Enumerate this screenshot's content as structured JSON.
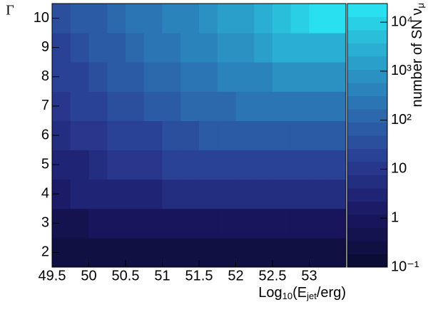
{
  "chart_data": {
    "type": "heatmap",
    "ylabel": "Γ",
    "xlabel": [
      "Log",
      "10",
      "(E",
      "jet",
      "/erg)"
    ],
    "zlabel": [
      "number of SN ν",
      "μ"
    ],
    "xbins": [
      49.5,
      49.75,
      50,
      50.25,
      50.5,
      50.75,
      51,
      51.25,
      51.5,
      51.75,
      52,
      52.25,
      52.5,
      52.75,
      53,
      53.25,
      53.5
    ],
    "ybins": [
      1.5,
      2.5,
      3.5,
      4.5,
      5.5,
      6.5,
      7.5,
      8.5,
      9.5,
      10.5
    ],
    "z": [
      [
        0.2,
        0.25,
        0.3,
        0.3,
        0.3,
        0.3,
        0.3,
        0.3,
        0.3,
        0.3,
        0.3,
        0.3,
        0.3,
        0.3,
        0.3,
        0.3
      ],
      [
        0.5,
        0.6,
        0.7,
        0.8,
        0.8,
        0.9,
        0.9,
        0.9,
        0.9,
        0.9,
        0.9,
        0.9,
        0.9,
        0.9,
        0.9,
        0.9
      ],
      [
        2,
        2.5,
        3,
        3,
        4,
        4,
        6,
        6,
        6,
        6,
        7,
        7,
        7,
        7,
        7,
        7
      ],
      [
        3,
        4,
        6,
        8,
        10,
        12,
        15,
        18,
        20,
        22,
        25,
        25,
        25,
        25,
        25,
        25
      ],
      [
        5,
        8,
        12,
        16,
        20,
        25,
        35,
        45,
        55,
        60,
        65,
        70,
        70,
        70,
        70,
        70
      ],
      [
        10,
        15,
        25,
        35,
        45,
        60,
        80,
        100,
        130,
        150,
        170,
        180,
        180,
        180,
        180,
        180
      ],
      [
        15,
        25,
        40,
        60,
        80,
        110,
        150,
        200,
        280,
        350,
        450,
        550,
        600,
        600,
        600,
        600
      ],
      [
        20,
        35,
        60,
        90,
        130,
        180,
        250,
        350,
        500,
        700,
        1000,
        1500,
        2500,
        3000,
        3000,
        3000
      ],
      [
        30,
        50,
        80,
        120,
        180,
        260,
        380,
        550,
        800,
        1200,
        2000,
        3500,
        6000,
        10000,
        15000,
        20000
      ]
    ],
    "xlim": [
      49.5,
      53.5
    ],
    "ylim": [
      1.5,
      10.5
    ],
    "zlim": [
      0.1,
      24000
    ],
    "zlog": true,
    "xticks": [
      49.5,
      50,
      50.5,
      51,
      51.5,
      52,
      52.5,
      53
    ],
    "yticks": [
      2,
      3,
      4,
      5,
      6,
      7,
      8,
      9,
      10
    ],
    "zticks": [
      {
        "value": 0.1,
        "label": "10⁻¹"
      },
      1,
      10,
      {
        "value": 100,
        "label": "10²"
      },
      {
        "value": 1000,
        "label": "10³"
      },
      {
        "value": 10000,
        "label": "10⁴"
      }
    ],
    "colormap": [
      "#0a0c30",
      "#1a1662",
      "#2a3c92",
      "#2c6eb0",
      "#2aa6cc",
      "#28e8f4"
    ],
    "levels": 20
  }
}
